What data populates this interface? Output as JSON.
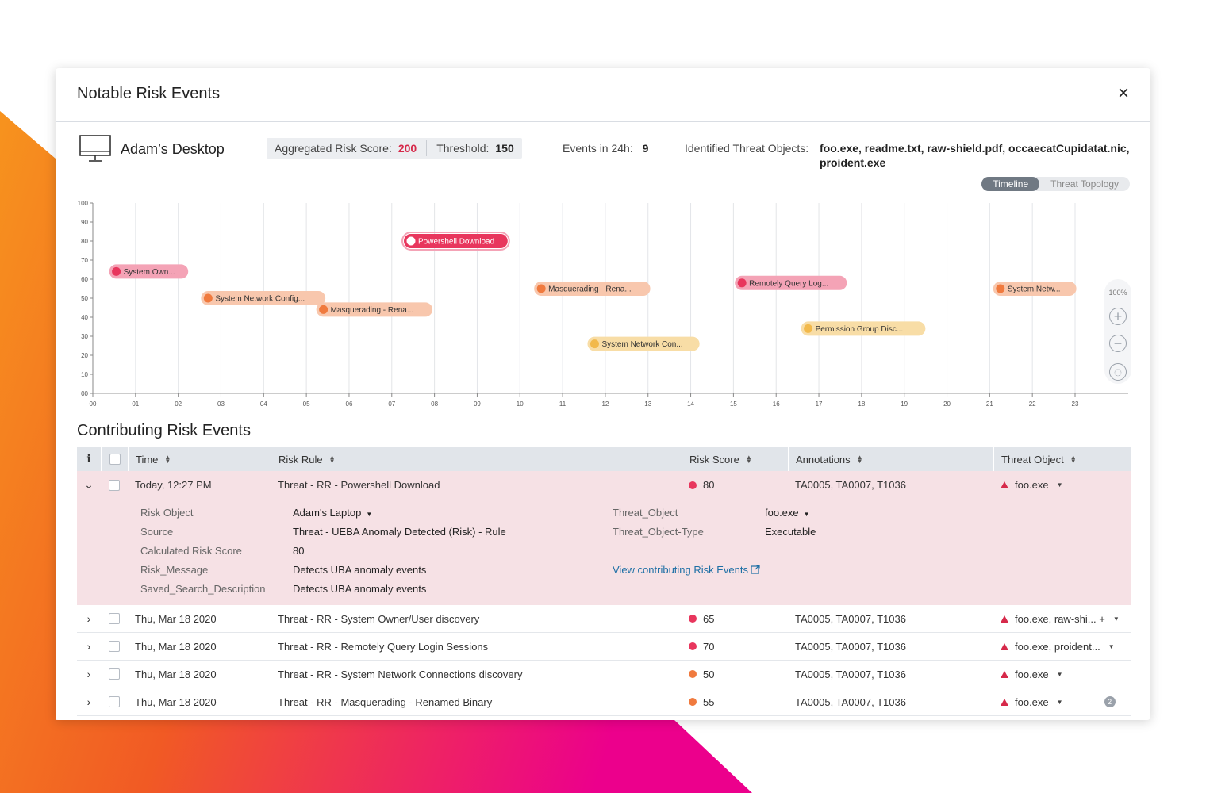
{
  "modal": {
    "title": "Notable Risk Events",
    "close_icon": "×"
  },
  "entity": {
    "name": "Adam’s Desktop",
    "aggregated_label": "Aggregated Risk Score:",
    "aggregated_value": "200",
    "threshold_label": "Threshold:",
    "threshold_value": "150",
    "events_label": "Events in 24h:",
    "events_value": "9",
    "threat_objects_label": "Identified Threat Objects:",
    "threat_objects_value": "foo.exe, readme.txt, raw-shield.pdf, occaecatCupidatat.nic, proident.exe"
  },
  "view_toggle": [
    "Timeline",
    "Threat Topology"
  ],
  "zoom": {
    "level": "100%",
    "zoom_in": "+",
    "zoom_out": "−",
    "reset": "◌"
  },
  "chart_data": {
    "type": "scatter",
    "xlabel": "",
    "ylabel": "",
    "x_ticks": [
      "00",
      "01",
      "02",
      "03",
      "04",
      "05",
      "06",
      "07",
      "08",
      "09",
      "10",
      "11",
      "12",
      "13",
      "14",
      "15",
      "16",
      "17",
      "18",
      "19",
      "20",
      "21",
      "22",
      "23"
    ],
    "y_ticks": [
      "00",
      "10",
      "20",
      "30",
      "40",
      "50",
      "60",
      "70",
      "80",
      "90",
      "100"
    ],
    "xlim": [
      0,
      23
    ],
    "ylim": [
      0,
      100
    ],
    "grid": true,
    "colors": {
      "high": "#e8365d",
      "medium": "#f07a3e",
      "low": "#f2b94b"
    },
    "points": [
      {
        "label": "System Own...",
        "x": 0.55,
        "y": 64,
        "level": "high"
      },
      {
        "label": "System Network Config...",
        "x": 2.7,
        "y": 50,
        "level": "medium"
      },
      {
        "label": "Masquerading - Rena...",
        "x": 5.4,
        "y": 44,
        "level": "medium"
      },
      {
        "label": "Powershell Download",
        "x": 7.45,
        "y": 80,
        "level": "high"
      },
      {
        "label": "Masquerading - Rena...",
        "x": 10.5,
        "y": 55,
        "level": "medium"
      },
      {
        "label": "System Network Con...",
        "x": 11.75,
        "y": 26,
        "level": "low"
      },
      {
        "label": "Remotely Query Log...",
        "x": 15.2,
        "y": 58,
        "level": "high"
      },
      {
        "label": "Permission Group Disc...",
        "x": 16.75,
        "y": 34,
        "level": "low"
      },
      {
        "label": "System Netw...",
        "x": 21.25,
        "y": 55,
        "level": "medium"
      }
    ]
  },
  "section_title": "Contributing Risk Events",
  "table": {
    "headers": [
      "Time",
      "Risk Rule",
      "Risk Score",
      "Annotations",
      "Threat Object"
    ],
    "info_icon": "i",
    "rows": [
      {
        "time": "Today, 12:27 PM",
        "rule": "Threat - RR - Powershell Download",
        "score": "80",
        "score_color": "#e8365d",
        "annotations": "TA0005, TA0007, T1036",
        "threat_object": "foo.exe",
        "expanded": true
      },
      {
        "time": "Thu, Mar 18 2020",
        "rule": "Threat - RR - System Owner/User discovery",
        "score": "65",
        "score_color": "#e8365d",
        "annotations": "TA0005, TA0007, T1036",
        "threat_object": "foo.exe, raw-shi... +"
      },
      {
        "time": "Thu, Mar 18 2020",
        "rule": "Threat - RR - Remotely Query Login Sessions",
        "score": "70",
        "score_color": "#e8365d",
        "annotations": "TA0005, TA0007, T1036",
        "threat_object": "foo.exe, proident..."
      },
      {
        "time": "Thu, Mar 18 2020",
        "rule": "Threat - RR - System Network Connections discovery",
        "score": "50",
        "score_color": "#f07a3e",
        "annotations": "TA0005, TA0007, T1036",
        "threat_object": "foo.exe"
      },
      {
        "time": "Thu, Mar 18 2020",
        "rule": "Threat - RR - Masquerading - Renamed Binary",
        "score": "55",
        "score_color": "#f07a3e",
        "annotations": "TA0005, TA0007, T1036",
        "threat_object": "foo.exe",
        "badge": "2"
      }
    ]
  },
  "detail": {
    "risk_object_label": "Risk Object",
    "risk_object_value": "Adam's Laptop",
    "source_label": "Source",
    "source_value": "Threat - UEBA Anomaly Detected (Risk) - Rule",
    "calc_label": "Calculated Risk Score",
    "calc_value": "80",
    "msg_label": "Risk_Message",
    "msg_value": "Detects UBA anomaly events",
    "desc_label": "Saved_Search_Description",
    "desc_value": "Detects UBA anomaly events",
    "threat_object_label": "Threat_Object",
    "threat_object_value": "foo.exe",
    "threat_type_label": "Threat_Object-Type",
    "threat_type_value": "Executable",
    "link_text": "View contributing Risk Events"
  }
}
